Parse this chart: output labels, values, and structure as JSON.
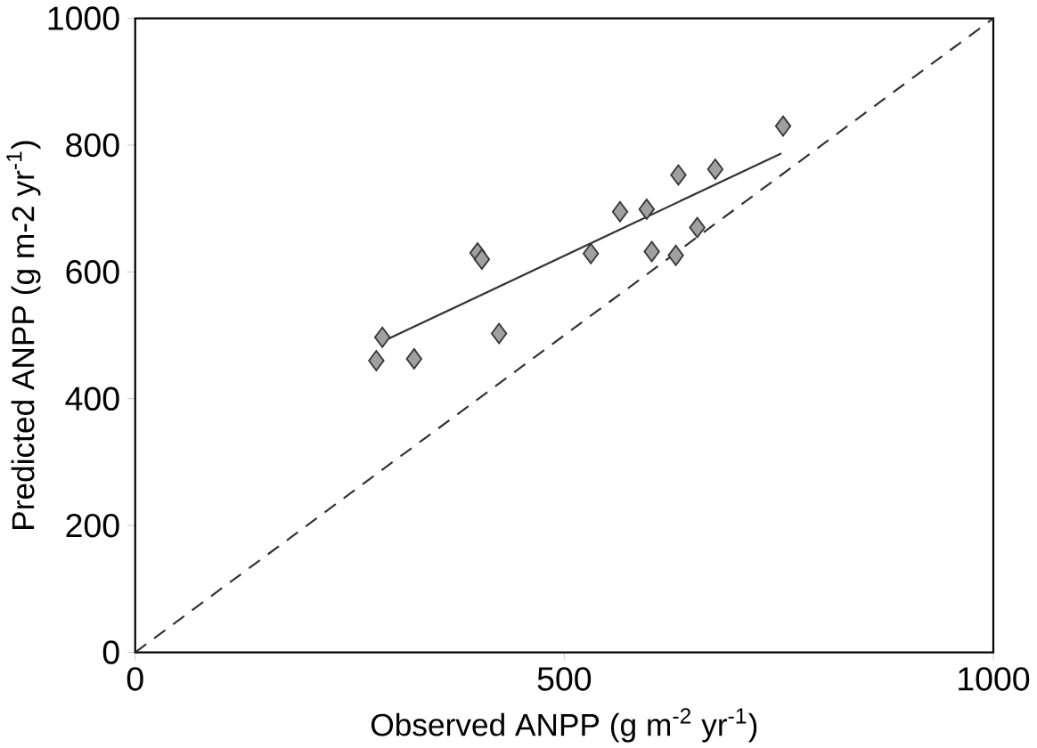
{
  "chart_data": {
    "type": "scatter",
    "xlabel": "Observed ANPP (g m$^{-2}$ yr$^{-1}$)",
    "ylabel": "Predicted ANPP (g m-2 yr$^{-1}$)",
    "xlim": [
      0,
      1000
    ],
    "ylim": [
      0,
      1000
    ],
    "xticks": [
      0,
      500,
      1000
    ],
    "yticks": [
      0,
      200,
      400,
      600,
      800,
      1000
    ],
    "grid": false,
    "marker": "diamond",
    "series": [
      {
        "color": "#a0a0a0",
        "x": [
          281,
          288,
          325,
          399,
          404,
          424,
          531,
          565,
          596,
          602,
          630,
          633,
          655,
          676,
          755
        ],
        "values": [
          460,
          497,
          463,
          630,
          620,
          503,
          629,
          695,
          699,
          632,
          626,
          753,
          670,
          762,
          830
        ]
      },
      {
        "type": "line",
        "color": "#333333",
        "marker": "none",
        "line_style": "solid",
        "x": [
          291,
          753
        ],
        "values": [
          492,
          787
        ]
      },
      {
        "type": "line",
        "color": "#333333",
        "marker": "none",
        "line_style": "dashed",
        "x": [
          0,
          1000
        ],
        "values": [
          0,
          1000
        ]
      }
    ]
  }
}
